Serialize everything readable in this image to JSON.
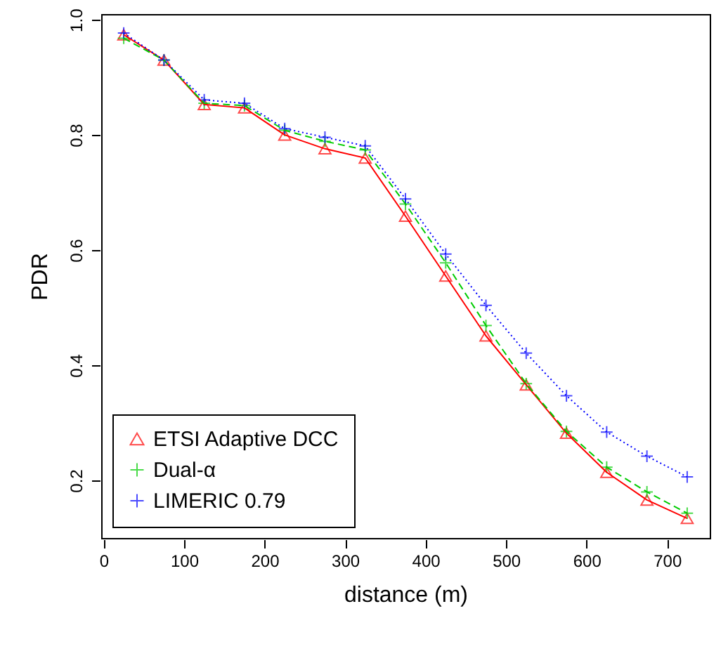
{
  "chart_data": {
    "type": "line",
    "xlabel": "distance (m)",
    "ylabel": "PDR",
    "x": [
      25,
      75,
      125,
      175,
      225,
      275,
      325,
      375,
      425,
      475,
      525,
      575,
      625,
      675,
      725
    ],
    "xlim": [
      -3,
      753
    ],
    "xticks": [
      0,
      100,
      200,
      300,
      400,
      500,
      600,
      700
    ],
    "ylim": [
      0.1,
      1.01
    ],
    "yticks": [
      0.2,
      0.4,
      0.6,
      0.8,
      {
        "value": 1.0,
        "label": "1.0"
      }
    ],
    "legend": "bottom left",
    "grid": false,
    "series": [
      {
        "name": "ETSI Adaptive DCC",
        "color": "#ff0000",
        "marker": "triangle",
        "line_style": "solid",
        "values": [
          0.974,
          0.93,
          0.853,
          0.847,
          0.8,
          0.776,
          0.76,
          0.659,
          0.555,
          0.451,
          0.366,
          0.282,
          0.214,
          0.166,
          0.134
        ]
      },
      {
        "name": "Dual-α",
        "color": "#00cc00",
        "marker": "cross",
        "line_style": "dashed",
        "values": [
          0.968,
          0.93,
          0.855,
          0.851,
          0.808,
          0.789,
          0.774,
          0.68,
          0.578,
          0.469,
          0.368,
          0.285,
          0.223,
          0.18,
          0.143
        ]
      },
      {
        "name": "LIMERIC 0.79",
        "color": "#0000ff",
        "marker": "cross",
        "line_style": "dotted",
        "values": [
          0.977,
          0.93,
          0.861,
          0.855,
          0.811,
          0.796,
          0.781,
          0.689,
          0.593,
          0.504,
          0.421,
          0.347,
          0.284,
          0.242,
          0.206
        ]
      }
    ]
  }
}
